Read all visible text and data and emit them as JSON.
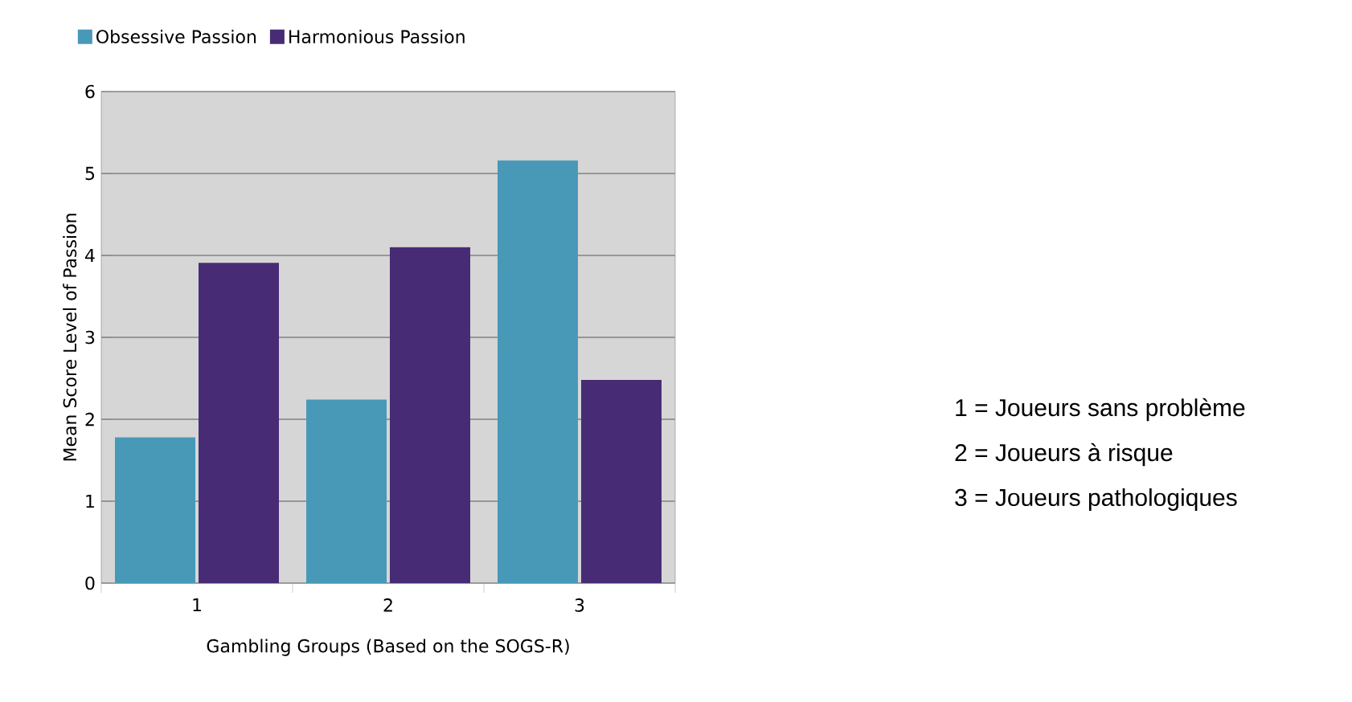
{
  "chart_data": {
    "type": "bar",
    "xlabel": "Gambling Groups (Based on the SOGS-R)",
    "ylabel": "Mean Score Level of Passion",
    "categories": [
      "1",
      "2",
      "3"
    ],
    "series": [
      {
        "name": "Obsessive Passion",
        "color": "#4899b8",
        "values": [
          1.78,
          2.24,
          5.16
        ]
      },
      {
        "name": "Harmonious Passion",
        "color": "#472c75",
        "values": [
          3.91,
          4.1,
          2.48
        ]
      }
    ],
    "ylim": [
      0,
      6
    ],
    "yticks": [
      0,
      1,
      2,
      3,
      4,
      5,
      6
    ],
    "grid": "y",
    "legend": "top",
    "annotations": [
      "1 = Joueurs sans problème",
      "2 = Joueurs à risque",
      "3 = Joueurs pathologiques"
    ]
  }
}
